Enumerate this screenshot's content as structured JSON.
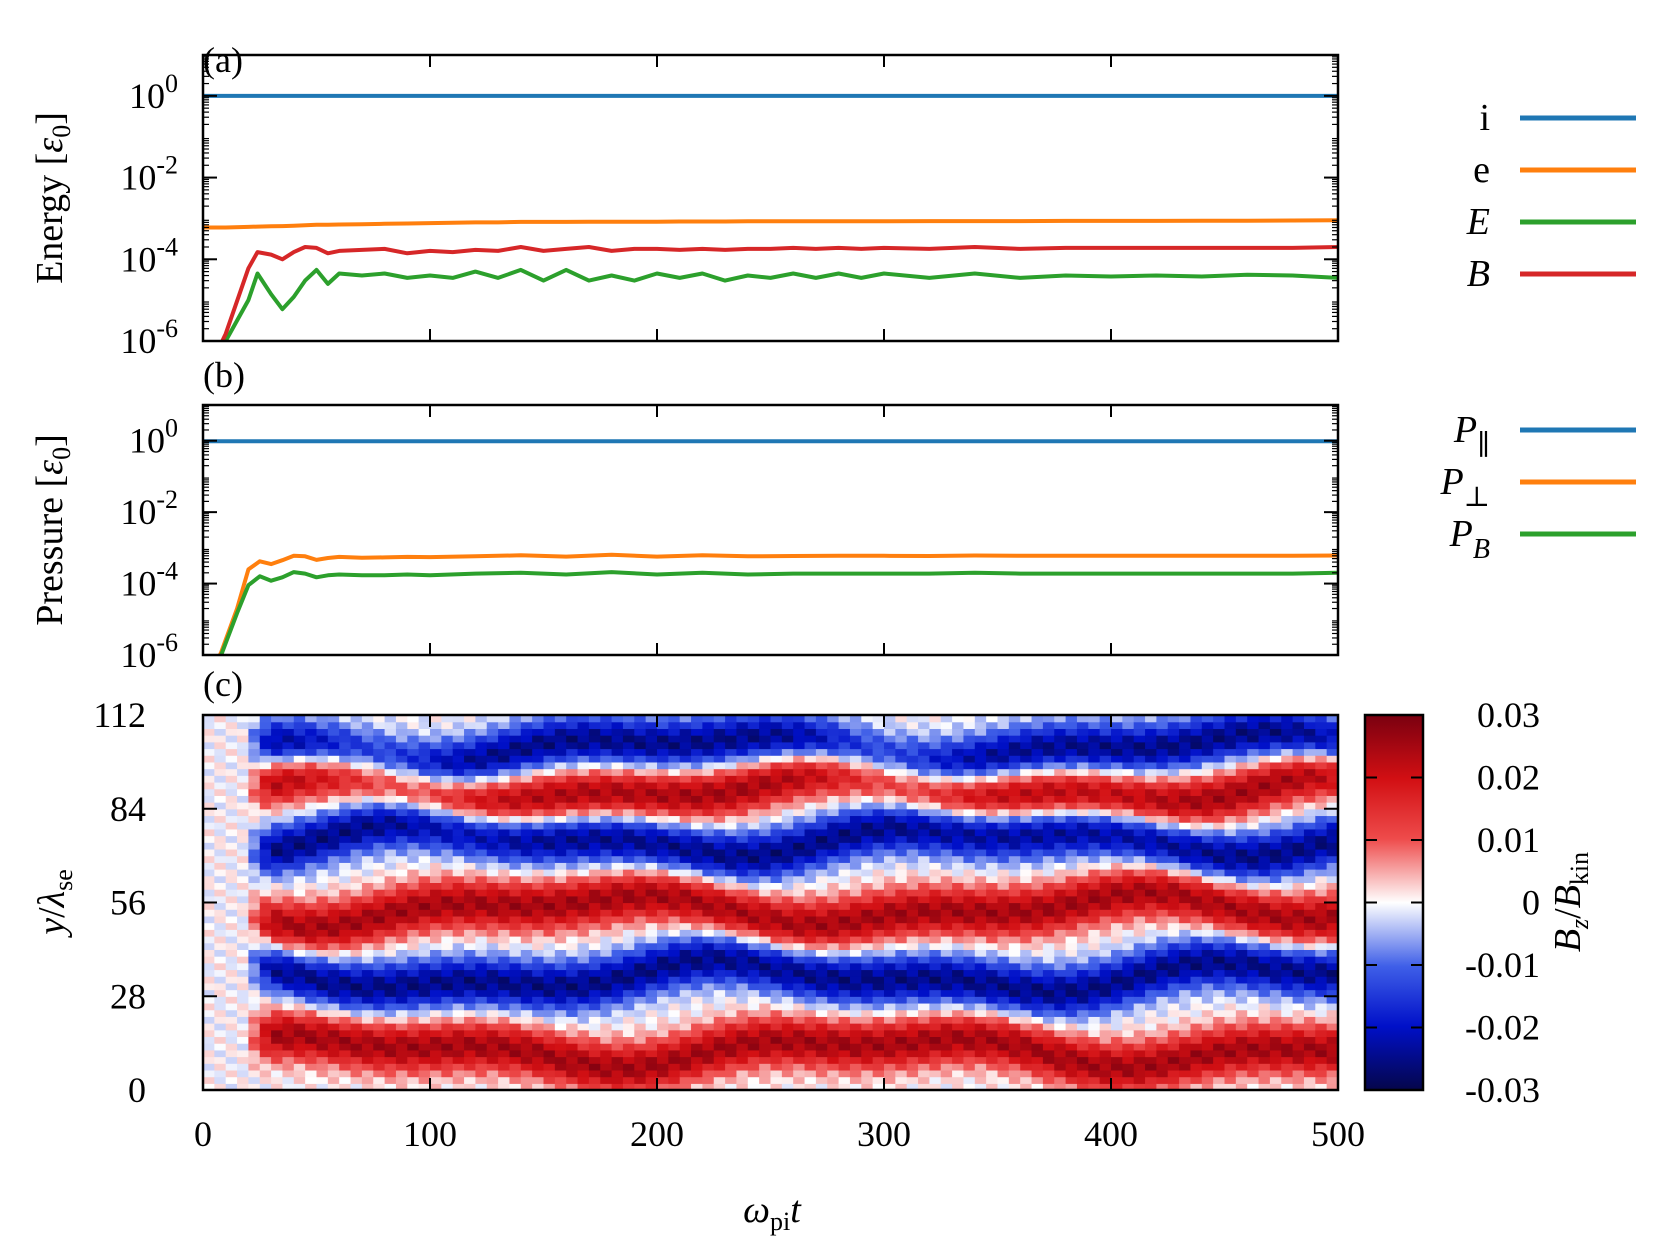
{
  "colors": {
    "i": "#1f77b4",
    "e": "#ff7f0e",
    "E": "#2ca02c",
    "B": "#d62728",
    "heat_low": "#05064a",
    "heat_mid": "#ffffff",
    "heat_high": "#7a0010"
  },
  "xaxis": {
    "label_main": "ω",
    "label_sub": "pi",
    "label_tail": "t",
    "ticks": [
      "0",
      "100",
      "200",
      "300",
      "400",
      "500"
    ]
  },
  "chart_data": [
    {
      "type": "line",
      "panel_label": "(a)",
      "ylabel_main": "Energy [",
      "ylabel_sym": "ε",
      "ylabel_sub": "0",
      "ylabel_tail": "]",
      "yscale": "log",
      "ylim": [
        1e-06,
        10
      ],
      "xlim": [
        0,
        500
      ],
      "yticks": [
        {
          "base": "10",
          "exp": "0"
        },
        {
          "base": "10",
          "exp": "-2"
        },
        {
          "base": "10",
          "exp": "-4"
        },
        {
          "base": "10",
          "exp": "-6"
        }
      ],
      "x": [
        0,
        10,
        20,
        24,
        30,
        35,
        40,
        45,
        50,
        55,
        60,
        70,
        80,
        90,
        100,
        110,
        120,
        130,
        140,
        150,
        160,
        170,
        180,
        190,
        200,
        210,
        220,
        230,
        240,
        250,
        260,
        270,
        280,
        290,
        300,
        320,
        340,
        360,
        380,
        400,
        420,
        440,
        460,
        480,
        500
      ],
      "series": [
        {
          "name": "i",
          "values": [
            1,
            1,
            1,
            1,
            1,
            1,
            1,
            1,
            1,
            1,
            1,
            1,
            1,
            1,
            1,
            1,
            1,
            1,
            1,
            1,
            1,
            1,
            1,
            1,
            1,
            1,
            1,
            1,
            1,
            1,
            1,
            1,
            1,
            1,
            1,
            1,
            1,
            1,
            1,
            1,
            1,
            1,
            1,
            1,
            1
          ]
        },
        {
          "name": "e",
          "values": [
            0.0006,
            0.0006,
            0.00062,
            0.00063,
            0.00064,
            0.00065,
            0.00066,
            0.00068,
            0.0007,
            0.0007,
            0.00071,
            0.00072,
            0.00074,
            0.00075,
            0.00077,
            0.00078,
            0.0008,
            0.0008,
            0.00082,
            0.00082,
            0.00082,
            0.00083,
            0.00083,
            0.00083,
            0.00083,
            0.00084,
            0.00084,
            0.00084,
            0.00085,
            0.00085,
            0.00085,
            0.00085,
            0.00085,
            0.00085,
            0.00085,
            0.00086,
            0.00086,
            0.00086,
            0.00087,
            0.00087,
            0.00087,
            0.00088,
            0.00088,
            0.00089,
            0.0009
          ]
        },
        {
          "name": "E",
          "values": [
            1e-07,
            1e-06,
            1e-05,
            4.5e-05,
            1.4e-05,
            6e-06,
            1.2e-05,
            3e-05,
            5.5e-05,
            2.5e-05,
            4.5e-05,
            4e-05,
            4.5e-05,
            3.5e-05,
            4e-05,
            3.5e-05,
            5e-05,
            3.5e-05,
            5.5e-05,
            3e-05,
            5.5e-05,
            3e-05,
            4e-05,
            3e-05,
            4.5e-05,
            3.5e-05,
            4.5e-05,
            3e-05,
            4e-05,
            3.5e-05,
            4.5e-05,
            3.5e-05,
            4.5e-05,
            3.5e-05,
            4.5e-05,
            3.5e-05,
            4.5e-05,
            3.5e-05,
            4e-05,
            3.8e-05,
            4e-05,
            3.8e-05,
            4.2e-05,
            4e-05,
            3.5e-05
          ]
        },
        {
          "name": "B",
          "values": [
            1e-07,
            1.5e-06,
            6e-05,
            0.00015,
            0.00013,
            0.0001,
            0.00015,
            0.0002,
            0.00019,
            0.00014,
            0.00016,
            0.00017,
            0.00018,
            0.00014,
            0.00016,
            0.00015,
            0.00017,
            0.00016,
            0.0002,
            0.00016,
            0.00018,
            0.0002,
            0.00016,
            0.00018,
            0.00018,
            0.00017,
            0.00018,
            0.00017,
            0.00018,
            0.00018,
            0.00019,
            0.00018,
            0.00019,
            0.00018,
            0.00019,
            0.00018,
            0.0002,
            0.00018,
            0.00019,
            0.00019,
            0.00019,
            0.00019,
            0.00019,
            0.00019,
            0.0002
          ]
        }
      ],
      "legend": [
        {
          "label": "i",
          "italic": false,
          "sub": ""
        },
        {
          "label": "e",
          "italic": false,
          "sub": ""
        },
        {
          "label": "E",
          "italic": true,
          "sub": ""
        },
        {
          "label": "B",
          "italic": true,
          "sub": ""
        }
      ],
      "legend_position": "right-outside"
    },
    {
      "type": "line",
      "panel_label": "(b)",
      "ylabel_main": "Pressure [",
      "ylabel_sym": "ε",
      "ylabel_sub": "0",
      "ylabel_tail": "]",
      "yscale": "log",
      "ylim": [
        1e-06,
        10
      ],
      "xlim": [
        0,
        500
      ],
      "yticks": [
        {
          "base": "10",
          "exp": "0"
        },
        {
          "base": "10",
          "exp": "-2"
        },
        {
          "base": "10",
          "exp": "-4"
        },
        {
          "base": "10",
          "exp": "-6"
        }
      ],
      "x": [
        0,
        8,
        15,
        20,
        25,
        30,
        35,
        40,
        45,
        50,
        55,
        60,
        70,
        80,
        90,
        100,
        120,
        140,
        160,
        180,
        200,
        220,
        240,
        260,
        280,
        300,
        320,
        340,
        360,
        380,
        400,
        420,
        440,
        460,
        480,
        500
      ],
      "series": [
        {
          "name": "P∥",
          "values": [
            0.96,
            0.96,
            0.96,
            0.96,
            0.96,
            0.96,
            0.96,
            0.96,
            0.96,
            0.96,
            0.96,
            0.96,
            0.96,
            0.96,
            0.96,
            0.96,
            0.96,
            0.96,
            0.96,
            0.96,
            0.96,
            0.96,
            0.96,
            0.96,
            0.96,
            0.96,
            0.96,
            0.96,
            0.96,
            0.96,
            0.96,
            0.96,
            0.96,
            0.96,
            0.96,
            0.96
          ]
        },
        {
          "name": "P⊥",
          "values": [
            1e-07,
            1.2e-06,
            2e-05,
            0.00025,
            0.00042,
            0.00035,
            0.00045,
            0.0006,
            0.00058,
            0.00046,
            0.00052,
            0.00056,
            0.00053,
            0.00054,
            0.00056,
            0.00055,
            0.00058,
            0.00062,
            0.00057,
            0.00064,
            0.00057,
            0.00062,
            0.00058,
            0.00059,
            0.0006,
            0.0006,
            0.00059,
            0.00061,
            0.0006,
            0.0006,
            0.0006,
            0.0006,
            0.0006,
            0.0006,
            0.0006,
            0.00061
          ]
        },
        {
          "name": "P_B",
          "values": [
            1e-07,
            1e-06,
            1.5e-05,
            9e-05,
            0.00016,
            0.00012,
            0.00015,
            0.00021,
            0.00019,
            0.00015,
            0.00017,
            0.00018,
            0.00017,
            0.00017,
            0.00018,
            0.00017,
            0.00019,
            0.0002,
            0.00018,
            0.00021,
            0.00018,
            0.0002,
            0.00018,
            0.00019,
            0.00019,
            0.00019,
            0.00019,
            0.0002,
            0.00019,
            0.00019,
            0.00019,
            0.00019,
            0.00019,
            0.00019,
            0.00019,
            0.0002
          ]
        }
      ],
      "legend": [
        {
          "label": "P",
          "italic": true,
          "sub": "∥"
        },
        {
          "label": "P",
          "italic": true,
          "sub": "⊥"
        },
        {
          "label": "P",
          "italic": true,
          "sub": "B"
        }
      ],
      "legend_position": "right-outside"
    },
    {
      "type": "heatmap",
      "panel_label": "(c)",
      "ylabel_main": "y",
      "ylabel_sym": "λ",
      "ylabel_sub": "se",
      "xlim": [
        0,
        500
      ],
      "ylim": [
        0,
        112
      ],
      "yticks": [
        "0",
        "28",
        "56",
        "84",
        "112"
      ],
      "band_centers": [
        12,
        34,
        54,
        75,
        90,
        102
      ],
      "band_signs": [
        1,
        -1,
        1,
        -1,
        1,
        -1
      ],
      "band_onset_t": 18,
      "amplitude": 0.03,
      "colorbar": {
        "label_main": "B",
        "label_sub1": "z",
        "label_slash": "/",
        "label_main2": "B",
        "label_sub2": "kin",
        "ticks": [
          "0.03",
          "0.02",
          "0.01",
          "0",
          "-0.01",
          "-0.02",
          "-0.03"
        ],
        "vmin": -0.03,
        "vmax": 0.03
      }
    }
  ]
}
